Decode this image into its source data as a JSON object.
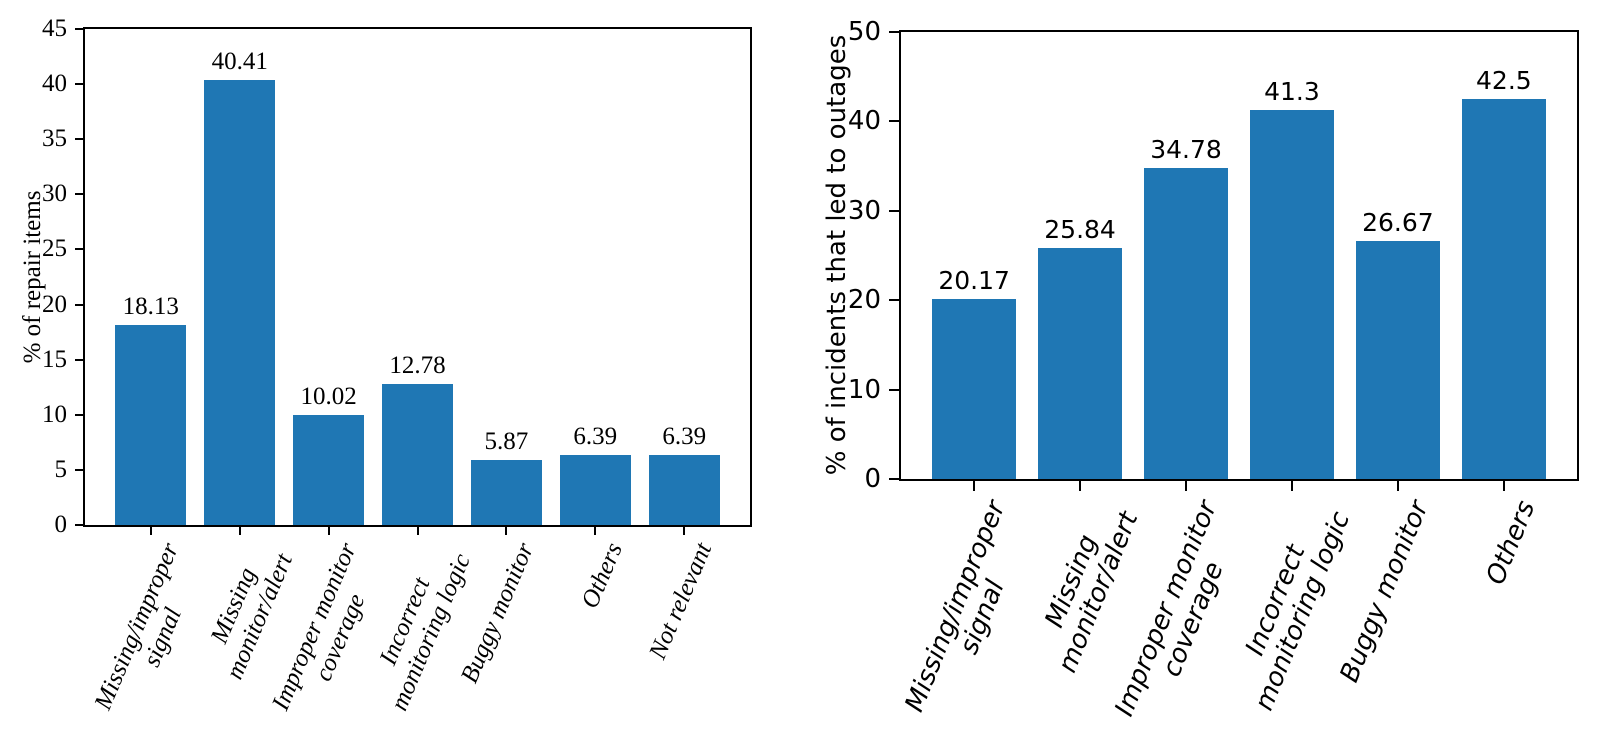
{
  "page": {
    "background": "#ffffff"
  },
  "chart_data": [
    {
      "type": "bar",
      "title": "",
      "xlabel": "",
      "ylabel": "% of repair items",
      "categories": [
        "Missing/improper\nsignal",
        "Missing\nmonitor/alert",
        "Improper monitor\ncoverage",
        "Incorrect\nmonitoring logic",
        "Buggy monitor",
        "Others",
        "Not relevant"
      ],
      "values": [
        18.13,
        40.41,
        10.02,
        12.78,
        5.87,
        6.39,
        6.39
      ],
      "bar_labels": [
        "18.13",
        "40.41",
        "10.02",
        "12.78",
        "5.87",
        "6.39",
        "6.39"
      ],
      "ylim": [
        0,
        45
      ],
      "yticks": [
        0,
        5,
        10,
        15,
        20,
        25,
        30,
        35,
        40,
        45
      ],
      "grid": false,
      "legend": null,
      "bar_color": "#1f77b4",
      "axis_color": "#000000",
      "text_color": "#000000"
    },
    {
      "type": "bar",
      "title": "",
      "xlabel": "",
      "ylabel": "% of incidents that led to outages",
      "categories": [
        "Missing/improper\nsignal",
        "Missing\nmonitor/alert",
        "Improper monitor\ncoverage",
        "Incorrect\nmonitoring logic",
        "Buggy monitor",
        "Others"
      ],
      "values": [
        20.17,
        25.84,
        34.78,
        41.3,
        26.67,
        42.5
      ],
      "bar_labels": [
        "20.17",
        "25.84",
        "34.78",
        "41.3",
        "26.67",
        "42.5"
      ],
      "ylim": [
        0,
        50
      ],
      "yticks": [
        0,
        10,
        20,
        30,
        40,
        50
      ],
      "grid": false,
      "legend": null,
      "bar_color": "#1f77b4",
      "axis_color": "#000000",
      "text_color": "#000000"
    }
  ]
}
